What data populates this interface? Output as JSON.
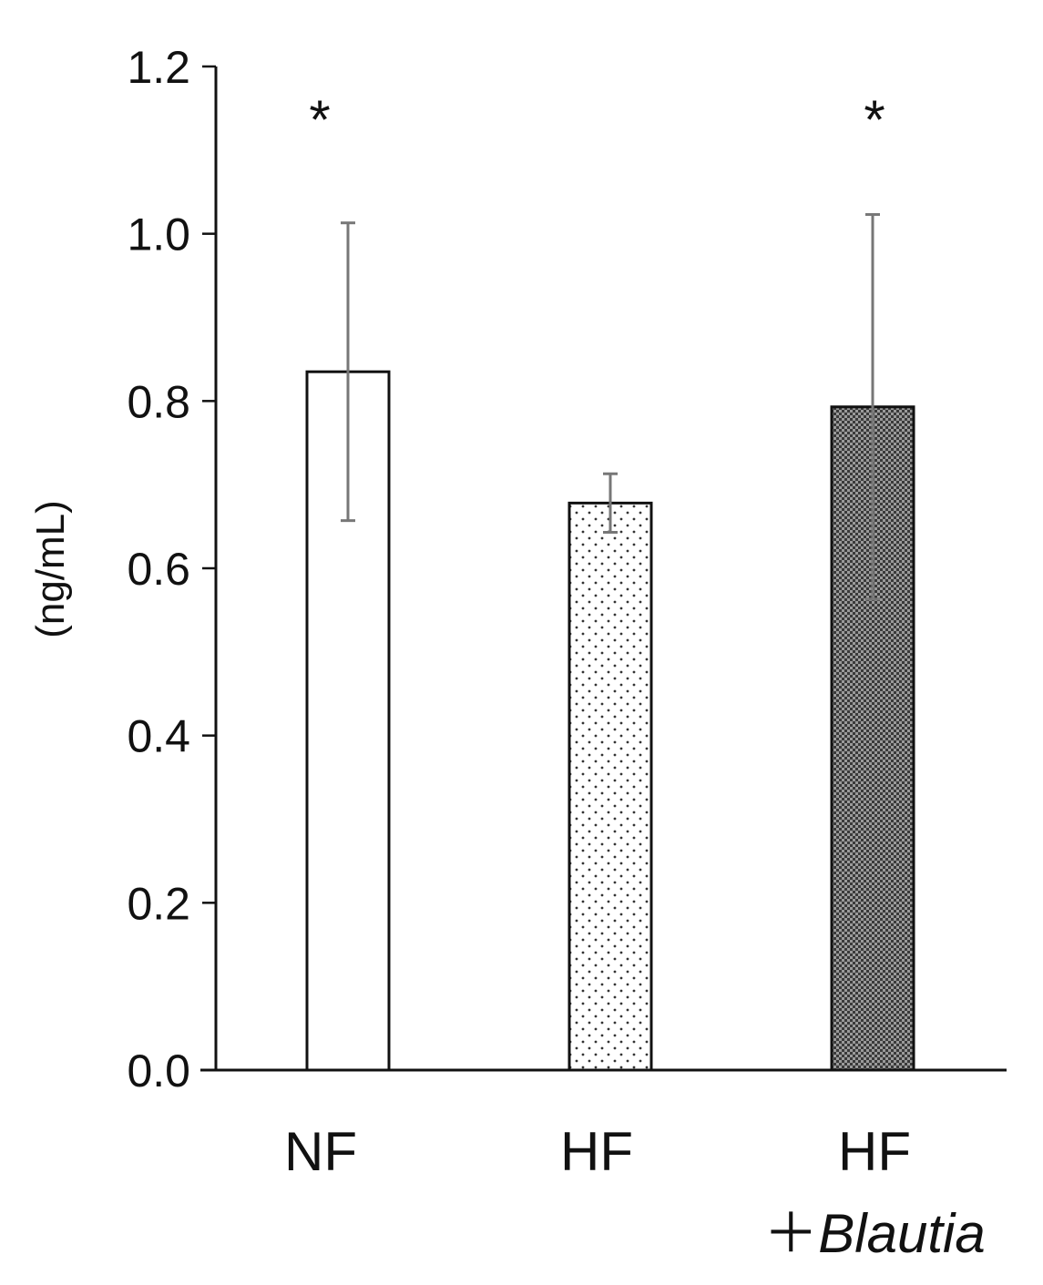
{
  "chart_data": {
    "type": "bar",
    "categories": [
      "NF",
      "HF",
      "HF\n＋Blautia"
    ],
    "category_lines": [
      [
        {
          "text": "NF",
          "italic": false
        }
      ],
      [
        {
          "text": "HF",
          "italic": false
        }
      ],
      [
        {
          "text": "HF",
          "italic": false
        },
        {
          "text": "＋",
          "italic": false,
          "inline_next": true
        },
        {
          "text": "Blautia",
          "italic": true
        }
      ]
    ],
    "values": [
      0.835,
      0.678,
      0.793
    ],
    "error": [
      0.178,
      0.035,
      0.23
    ],
    "significance": [
      "*",
      "",
      "*"
    ],
    "ylabel": "(ng/mL)",
    "ylim": [
      0,
      1.2
    ],
    "yticks": [
      "0.0",
      "0.2",
      "0.4",
      "0.6",
      "0.8",
      "1.0",
      "1.2"
    ],
    "grid": false,
    "patterns": [
      "none",
      "sparse-dots",
      "dense-checker"
    ]
  }
}
